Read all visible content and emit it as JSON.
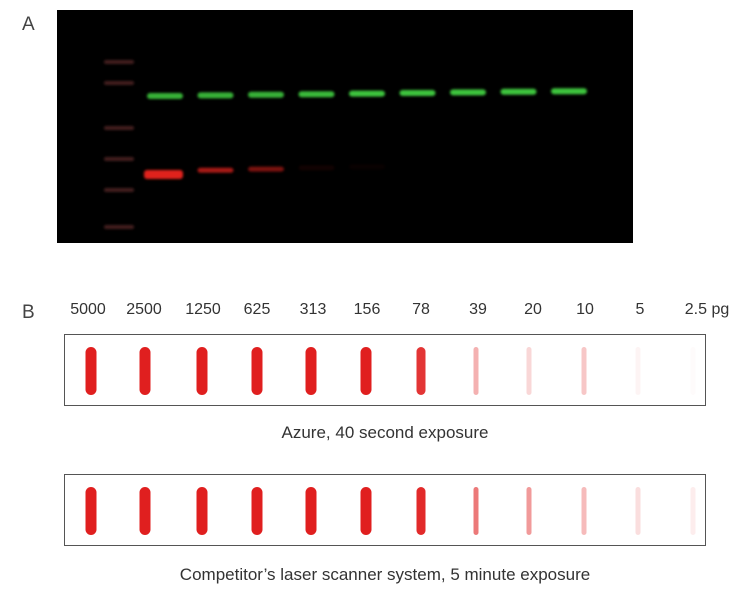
{
  "panel_a": {
    "label": "A",
    "description_colors": {
      "background": "#000000",
      "green_band": "#3ec43e",
      "red_band": "#e0201e",
      "ladder": "#5a2a2a"
    },
    "lane_count": 9,
    "green_band_intensity": [
      0.9,
      0.9,
      0.9,
      0.95,
      1,
      1,
      1,
      1,
      1
    ],
    "red_band_intensity": [
      1,
      0.75,
      0.55,
      0.08,
      0.04,
      0,
      0,
      0,
      0
    ]
  },
  "panel_b": {
    "label": "B",
    "concentrations": [
      "5000",
      "2500",
      "1250",
      "625",
      "313",
      "156",
      "78",
      "39",
      "20",
      "10",
      "5",
      "2.5 pg"
    ],
    "rows": [
      {
        "caption": "Azure, 40 second exposure",
        "intensity": [
          1,
          1,
          1,
          1,
          1,
          1,
          0.9,
          0.35,
          0.18,
          0.25,
          0.05,
          0.02
        ]
      },
      {
        "caption": "Competitor’s laser scanner system, 5 minute exposure",
        "intensity": [
          1,
          1,
          1,
          1,
          1,
          1,
          0.95,
          0.6,
          0.45,
          0.3,
          0.15,
          0.08
        ]
      }
    ],
    "slot_color": "#e01f1f"
  }
}
